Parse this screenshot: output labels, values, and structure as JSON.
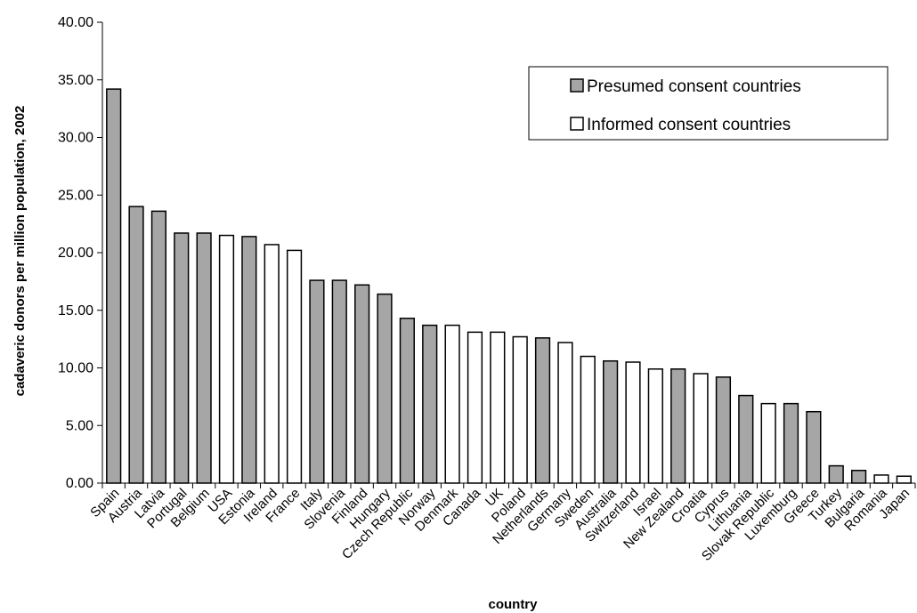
{
  "chart_data": {
    "type": "bar",
    "xlabel": "country",
    "ylabel": "cadaveric donors per million population, 2002",
    "ylim": [
      0,
      40
    ],
    "yticks": [
      "0.00",
      "5.00",
      "10.00",
      "15.00",
      "20.00",
      "25.00",
      "30.00",
      "35.00",
      "40.00"
    ],
    "grid": false,
    "legend_position": "top-right",
    "legend": [
      {
        "label": "Presumed consent countries",
        "group": "presumed",
        "color": "#a6a6a6"
      },
      {
        "label": "Informed consent countries",
        "group": "informed",
        "color": "#ffffff"
      }
    ],
    "categories": [
      "Spain",
      "Austria",
      "Latvia",
      "Portugal",
      "Belgium",
      "USA",
      "Estonia",
      "Ireland",
      "France",
      "Italy",
      "Slovenia",
      "Finland",
      "Hungary",
      "Czech Republic",
      "Norway",
      "Denmark",
      "Canada",
      "UK",
      "Poland",
      "Netherlands",
      "Germany",
      "Sweden",
      "Australia",
      "Switzerland",
      "Israel",
      "New Zealand",
      "Croatia",
      "Cyprus",
      "Lithuania",
      "Slovak Republic",
      "Luxemburg",
      "Greece",
      "Turkey",
      "Bulgaria",
      "Romania",
      "Japan"
    ],
    "values": [
      34.2,
      24.0,
      23.6,
      21.7,
      21.7,
      21.5,
      21.4,
      20.7,
      20.2,
      17.6,
      17.6,
      17.2,
      16.4,
      14.3,
      13.7,
      13.7,
      13.1,
      13.1,
      12.7,
      12.6,
      12.2,
      11.0,
      10.6,
      10.5,
      9.9,
      9.9,
      9.5,
      9.2,
      7.6,
      6.9,
      6.9,
      6.2,
      1.5,
      1.1,
      0.7,
      0.6
    ],
    "groups": [
      "presumed",
      "presumed",
      "presumed",
      "presumed",
      "presumed",
      "informed",
      "presumed",
      "informed",
      "informed",
      "presumed",
      "presumed",
      "presumed",
      "presumed",
      "presumed",
      "presumed",
      "informed",
      "informed",
      "informed",
      "informed",
      "presumed",
      "informed",
      "informed",
      "presumed",
      "informed",
      "informed",
      "presumed",
      "informed",
      "presumed",
      "presumed",
      "informed",
      "presumed",
      "presumed",
      "presumed",
      "presumed",
      "informed",
      "informed"
    ]
  }
}
